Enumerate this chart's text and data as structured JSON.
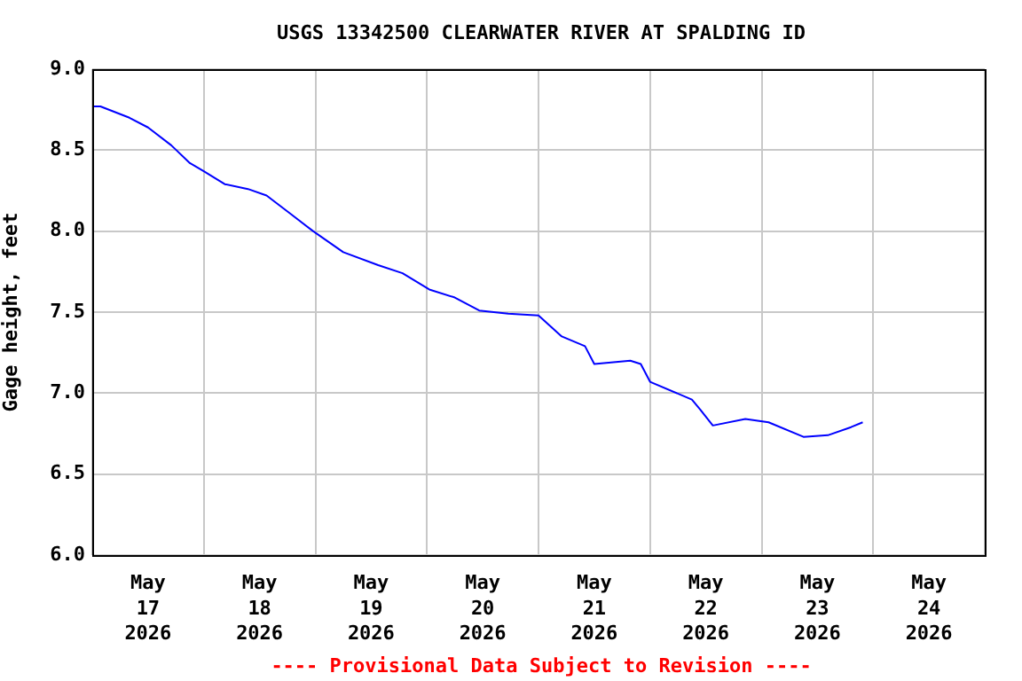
{
  "chart_data": {
    "type": "line",
    "title": "USGS 13342500 CLEARWATER RIVER AT SPALDING ID",
    "ylabel": "Gage height, feet",
    "annotations": [
      "---- Provisional Data Subject to Revision ----"
    ],
    "x": [
      "2026-05-17T00:00",
      "2026-05-17T01:45",
      "2026-05-17T08:00",
      "2026-05-17T12:00",
      "2026-05-17T17:00",
      "2026-05-17T21:00",
      "2026-05-18T00:00",
      "2026-05-18T04:30",
      "2026-05-18T09:30",
      "2026-05-18T13:30",
      "2026-05-18T18:30",
      "2026-05-18T23:30",
      "2026-05-19T06:00",
      "2026-05-19T13:30",
      "2026-05-19T18:45",
      "2026-05-20T00:30",
      "2026-05-20T06:00",
      "2026-05-20T11:15",
      "2026-05-20T17:30",
      "2026-05-21T00:00",
      "2026-05-21T05:00",
      "2026-05-21T10:00",
      "2026-05-21T12:00",
      "2026-05-21T19:45",
      "2026-05-21T22:00",
      "2026-05-22T00:00",
      "2026-05-22T09:00",
      "2026-05-22T10:45",
      "2026-05-22T13:30",
      "2026-05-22T20:30",
      "2026-05-23T01:30",
      "2026-05-23T09:00",
      "2026-05-23T14:15",
      "2026-05-23T19:15",
      "2026-05-23T21:45"
    ],
    "series": [
      {
        "color": "#0000ff",
        "values": [
          8.77,
          8.77,
          8.7,
          8.64,
          8.53,
          8.42,
          8.37,
          8.29,
          8.26,
          8.22,
          8.11,
          8.0,
          7.87,
          7.79,
          7.74,
          7.64,
          7.59,
          7.51,
          7.49,
          7.48,
          7.35,
          7.29,
          7.18,
          7.2,
          7.18,
          7.07,
          6.96,
          6.9,
          6.8,
          6.84,
          6.82,
          6.73,
          6.74,
          6.79,
          6.82
        ]
      }
    ],
    "xlim": [
      "2026-05-17T00:00",
      "2026-05-25T00:00"
    ],
    "xticks": [
      {
        "value": "2026-05-17T00:00",
        "label": null
      },
      {
        "value": "2026-05-17T12:00",
        "label": "May\n17\n2026"
      },
      {
        "value": "2026-05-18T00:00",
        "label": null
      },
      {
        "value": "2026-05-18T12:00",
        "label": "May\n18\n2026"
      },
      {
        "value": "2026-05-19T00:00",
        "label": null
      },
      {
        "value": "2026-05-19T12:00",
        "label": "May\n19\n2026"
      },
      {
        "value": "2026-05-20T00:00",
        "label": null
      },
      {
        "value": "2026-05-20T12:00",
        "label": "May\n20\n2026"
      },
      {
        "value": "2026-05-21T00:00",
        "label": null
      },
      {
        "value": "2026-05-21T12:00",
        "label": "May\n21\n2026"
      },
      {
        "value": "2026-05-22T00:00",
        "label": null
      },
      {
        "value": "2026-05-22T12:00",
        "label": "May\n22\n2026"
      },
      {
        "value": "2026-05-23T00:00",
        "label": null
      },
      {
        "value": "2026-05-23T12:00",
        "label": "May\n23\n2026"
      },
      {
        "value": "2026-05-24T00:00",
        "label": null
      },
      {
        "value": "2026-05-24T12:00",
        "label": "May\n24\n2026"
      },
      {
        "value": "2026-05-25T00:00",
        "label": null
      }
    ],
    "ylim": [
      6.0,
      9.0
    ],
    "yticks": [
      {
        "value": 6,
        "label": "6.0"
      },
      {
        "value": 6.5,
        "label": "6.5"
      },
      {
        "value": 7,
        "label": "7.0"
      },
      {
        "value": 7.5,
        "label": "7.5"
      },
      {
        "value": 8,
        "label": "8.0"
      },
      {
        "value": 8.5,
        "label": "8.5"
      },
      {
        "value": 9,
        "label": "9.0"
      }
    ],
    "grid": true,
    "legend": false,
    "marker": "none",
    "line_style": "solid"
  }
}
